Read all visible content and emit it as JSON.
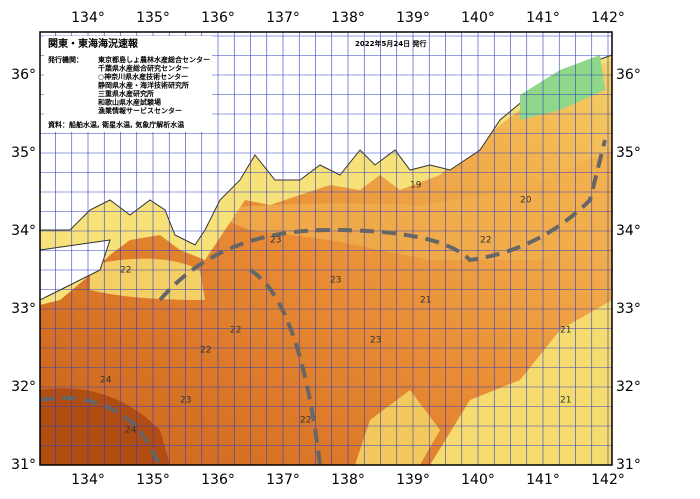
{
  "title": "関東・東海海況速報",
  "date": "2022年5月24日 発行",
  "issuers_label": "発行機関：",
  "issuers": [
    "東京都島しょ農林水産総合センター",
    "千葉県水産総合研究センター",
    "○神奈川県水産技術センター",
    "静岡県水産・海洋技術研究所",
    "三重県水産研究所",
    "和歌山県水産試験場",
    "漁業情報サービスセンター"
  ],
  "source": "資料：船舶水温, 衛星水温, 気象庁解析水温",
  "map": {
    "lon_ticks": [
      {
        "value": 134,
        "label": "134°"
      },
      {
        "value": 135,
        "label": "135°"
      },
      {
        "value": 136,
        "label": "136°"
      },
      {
        "value": 137,
        "label": "137°"
      },
      {
        "value": 138,
        "label": "138°"
      },
      {
        "value": 139,
        "label": "139°"
      },
      {
        "value": 140,
        "label": "140°"
      },
      {
        "value": 141,
        "label": "141°"
      },
      {
        "value": 142,
        "label": "142°"
      }
    ],
    "lat_ticks": [
      {
        "value": 31,
        "label": "31°"
      },
      {
        "value": 32,
        "label": "32°"
      },
      {
        "value": 33,
        "label": "33°"
      },
      {
        "value": 34,
        "label": "34°"
      },
      {
        "value": 35,
        "label": "35°"
      },
      {
        "value": 36,
        "label": "36°"
      }
    ],
    "contour_labels": [
      "22",
      "23",
      "21",
      "22",
      "24",
      "23",
      "22",
      "21",
      "24",
      "23",
      "22",
      "20",
      "19",
      "21",
      "22",
      "23"
    ]
  }
}
